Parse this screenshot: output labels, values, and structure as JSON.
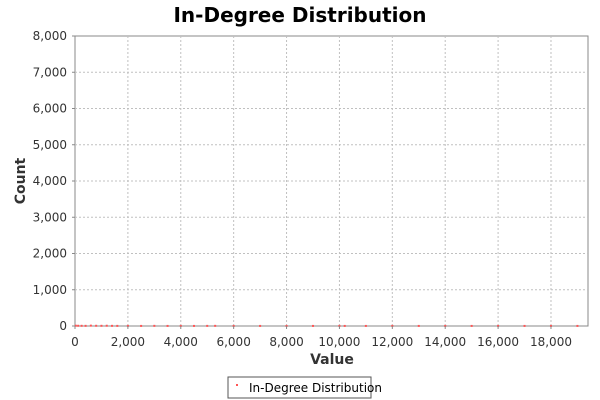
{
  "chart_data": {
    "type": "scatter",
    "title": "In-Degree Distribution",
    "xlabel": "Value",
    "ylabel": "Count",
    "xlim": [
      0,
      19400
    ],
    "ylim": [
      0,
      8000
    ],
    "x_ticks": [
      0,
      2000,
      4000,
      6000,
      8000,
      10000,
      12000,
      14000,
      16000,
      18000
    ],
    "y_ticks": [
      0,
      1000,
      2000,
      3000,
      4000,
      5000,
      6000,
      7000,
      8000
    ],
    "x_tick_labels": [
      "0",
      "2,000",
      "4,000",
      "6,000",
      "8,000",
      "10,000",
      "12,000",
      "14,000",
      "16,000",
      "18,000"
    ],
    "y_tick_labels": [
      "0",
      "1,000",
      "2,000",
      "3,000",
      "4,000",
      "5,000",
      "6,000",
      "7,000",
      "8,000"
    ],
    "grid": true,
    "legend_position": "bottom",
    "series": [
      {
        "name": "In-Degree Distribution",
        "color": "#ff5555",
        "marker": "point",
        "points": [
          [
            30,
            8
          ],
          [
            120,
            6
          ],
          [
            250,
            5
          ],
          [
            400,
            4
          ],
          [
            600,
            10
          ],
          [
            800,
            6
          ],
          [
            1000,
            5
          ],
          [
            1200,
            7
          ],
          [
            1400,
            4
          ],
          [
            1600,
            3
          ],
          [
            2000,
            3
          ],
          [
            2500,
            2
          ],
          [
            3000,
            4
          ],
          [
            3500,
            2
          ],
          [
            4000,
            3
          ],
          [
            4500,
            2
          ],
          [
            5000,
            3
          ],
          [
            5300,
            4
          ],
          [
            6000,
            2
          ],
          [
            7000,
            2
          ],
          [
            8000,
            2
          ],
          [
            9000,
            2
          ],
          [
            10000,
            3
          ],
          [
            10200,
            2
          ],
          [
            11000,
            2
          ],
          [
            12000,
            3
          ],
          [
            13000,
            2
          ],
          [
            14000,
            2
          ],
          [
            15000,
            2
          ],
          [
            16000,
            2
          ],
          [
            17000,
            2
          ],
          [
            18000,
            2
          ],
          [
            19000,
            2
          ]
        ]
      }
    ]
  }
}
